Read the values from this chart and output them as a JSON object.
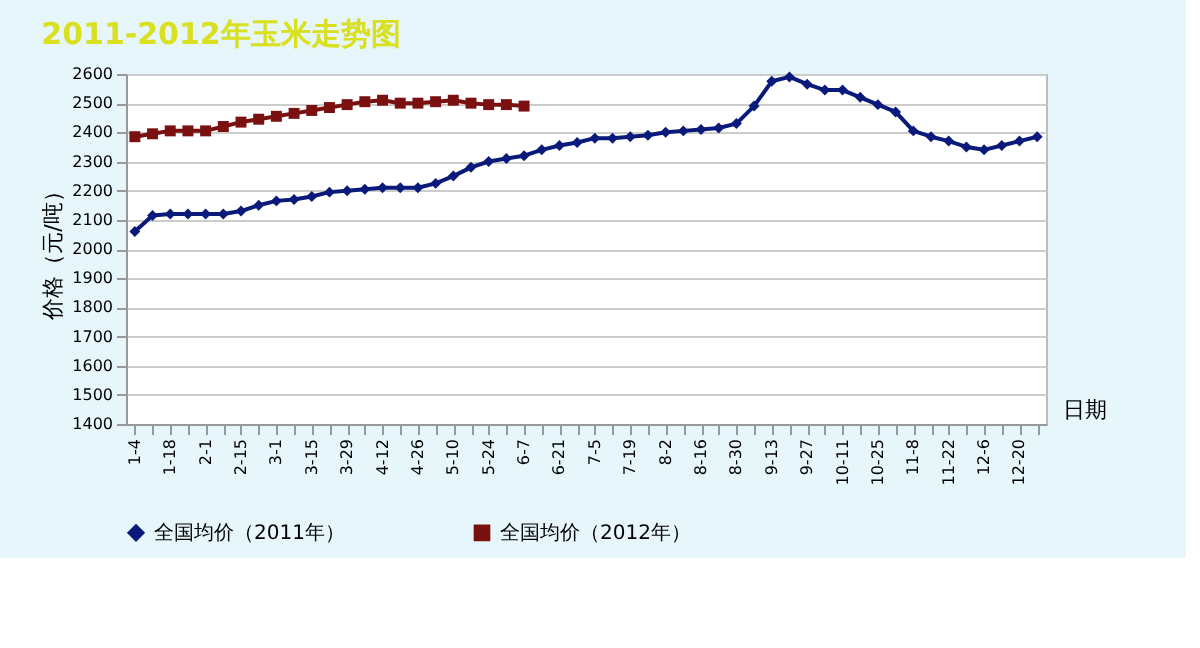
{
  "chart_data": {
    "type": "line",
    "title": "2011-2012年玉米走势图",
    "xlabel": "日期",
    "ylabel": "价格（元/吨）",
    "categories": [
      "1-4",
      null,
      "1-18",
      null,
      "2-1",
      null,
      "2-15",
      null,
      "3-1",
      null,
      "3-15",
      null,
      "3-29",
      null,
      "4-12",
      null,
      "4-26",
      null,
      "5-10",
      null,
      "5-24",
      null,
      "6-7",
      null,
      "6-21",
      null,
      "7-5",
      null,
      "7-19",
      null,
      "8-2",
      null,
      "8-16",
      null,
      "8-30",
      null,
      "9-13",
      null,
      "9-27",
      null,
      "10-11",
      null,
      "10-25",
      null,
      "11-8",
      null,
      "11-22",
      null,
      "12-6",
      null,
      "12-20",
      null
    ],
    "series": [
      {
        "name": "全国均价（2011年）",
        "color": "#0a1a7a",
        "marker": "diamond",
        "values": [
          2060,
          2115,
          2120,
          2120,
          2120,
          2120,
          2130,
          2150,
          2165,
          2170,
          2180,
          2195,
          2200,
          2205,
          2210,
          2210,
          2210,
          2225,
          2250,
          2280,
          2300,
          2310,
          2320,
          2340,
          2355,
          2365,
          2380,
          2380,
          2385,
          2390,
          2400,
          2405,
          2410,
          2415,
          2430,
          2490,
          2575,
          2590,
          2565,
          2545,
          2545,
          2520,
          2495,
          2470,
          2405,
          2385,
          2370,
          2350,
          2340,
          2355,
          2370,
          2385
        ]
      },
      {
        "name": "全国均价（2012年）",
        "color": "#7a1010",
        "marker": "square",
        "values": [
          2385,
          2395,
          2405,
          2405,
          2405,
          2420,
          2435,
          2445,
          2455,
          2465,
          2475,
          2485,
          2495,
          2505,
          2510,
          2500,
          2500,
          2505,
          2510,
          2500,
          2495,
          2495,
          2490,
          null,
          null,
          null,
          null,
          null,
          null,
          null,
          null,
          null,
          null,
          null,
          null,
          null,
          null,
          null,
          null,
          null,
          null,
          null,
          null,
          null,
          null,
          null,
          null,
          null,
          null,
          null,
          null,
          null
        ]
      }
    ],
    "ylim": [
      1400,
      2600
    ],
    "yticks": [
      1400,
      1500,
      1600,
      1700,
      1800,
      1900,
      2000,
      2100,
      2200,
      2300,
      2400,
      2500,
      2600
    ],
    "grid": "y",
    "legend": "bottom",
    "line_style": "solid"
  }
}
